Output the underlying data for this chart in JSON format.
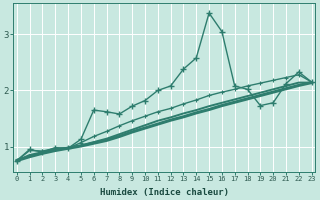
{
  "xlabel": "Humidex (Indice chaleur)",
  "bg_color": "#c8e8e0",
  "line_color": "#2e7d6e",
  "grid_color": "#ffffff",
  "xlim": [
    -0.3,
    23.3
  ],
  "ylim": [
    0.55,
    3.55
  ],
  "yticks": [
    1,
    2,
    3
  ],
  "xticks": [
    0,
    1,
    2,
    3,
    4,
    5,
    6,
    7,
    8,
    9,
    10,
    11,
    12,
    13,
    14,
    15,
    16,
    17,
    18,
    19,
    20,
    21,
    22,
    23
  ],
  "series1_x": [
    0,
    1,
    2,
    3,
    4,
    5,
    6,
    7,
    8,
    9,
    10,
    11,
    12,
    13,
    14,
    15,
    16,
    17,
    18,
    19,
    20,
    21,
    22,
    23
  ],
  "series1_y": [
    0.75,
    0.95,
    0.9,
    0.98,
    0.97,
    1.13,
    1.65,
    1.62,
    1.58,
    1.72,
    1.82,
    2.0,
    2.08,
    2.38,
    2.58,
    3.38,
    3.05,
    2.08,
    2.02,
    1.73,
    1.78,
    2.12,
    2.33,
    2.15
  ],
  "series2_x": [
    0,
    1,
    2,
    3,
    4,
    5,
    6,
    7,
    8,
    9,
    10,
    11,
    12,
    13,
    14,
    15,
    16,
    17,
    18,
    19,
    20,
    21,
    22,
    23
  ],
  "series2_y": [
    0.75,
    0.93,
    0.92,
    0.97,
    0.97,
    1.07,
    1.18,
    1.27,
    1.37,
    1.46,
    1.54,
    1.62,
    1.68,
    1.76,
    1.83,
    1.91,
    1.97,
    2.02,
    2.08,
    2.13,
    2.18,
    2.23,
    2.28,
    2.15
  ],
  "series3_x": [
    0,
    1,
    2,
    3,
    4,
    5,
    6,
    7,
    8,
    9,
    10,
    11,
    12,
    13,
    14,
    15,
    16,
    17,
    18,
    19,
    20,
    21,
    22,
    23
  ],
  "series3_y": [
    0.75,
    0.85,
    0.9,
    0.95,
    0.98,
    1.02,
    1.08,
    1.14,
    1.22,
    1.3,
    1.38,
    1.46,
    1.52,
    1.59,
    1.65,
    1.72,
    1.78,
    1.84,
    1.9,
    1.96,
    2.02,
    2.08,
    2.14,
    2.14
  ],
  "series4_x": [
    0,
    1,
    2,
    3,
    4,
    5,
    6,
    7,
    8,
    9,
    10,
    11,
    12,
    13,
    14,
    15,
    16,
    17,
    18,
    19,
    20,
    21,
    22,
    23
  ],
  "series4_y": [
    0.75,
    0.82,
    0.88,
    0.93,
    0.97,
    1.01,
    1.06,
    1.11,
    1.18,
    1.26,
    1.33,
    1.4,
    1.47,
    1.53,
    1.6,
    1.66,
    1.73,
    1.79,
    1.85,
    1.91,
    1.97,
    2.03,
    2.09,
    2.14
  ]
}
